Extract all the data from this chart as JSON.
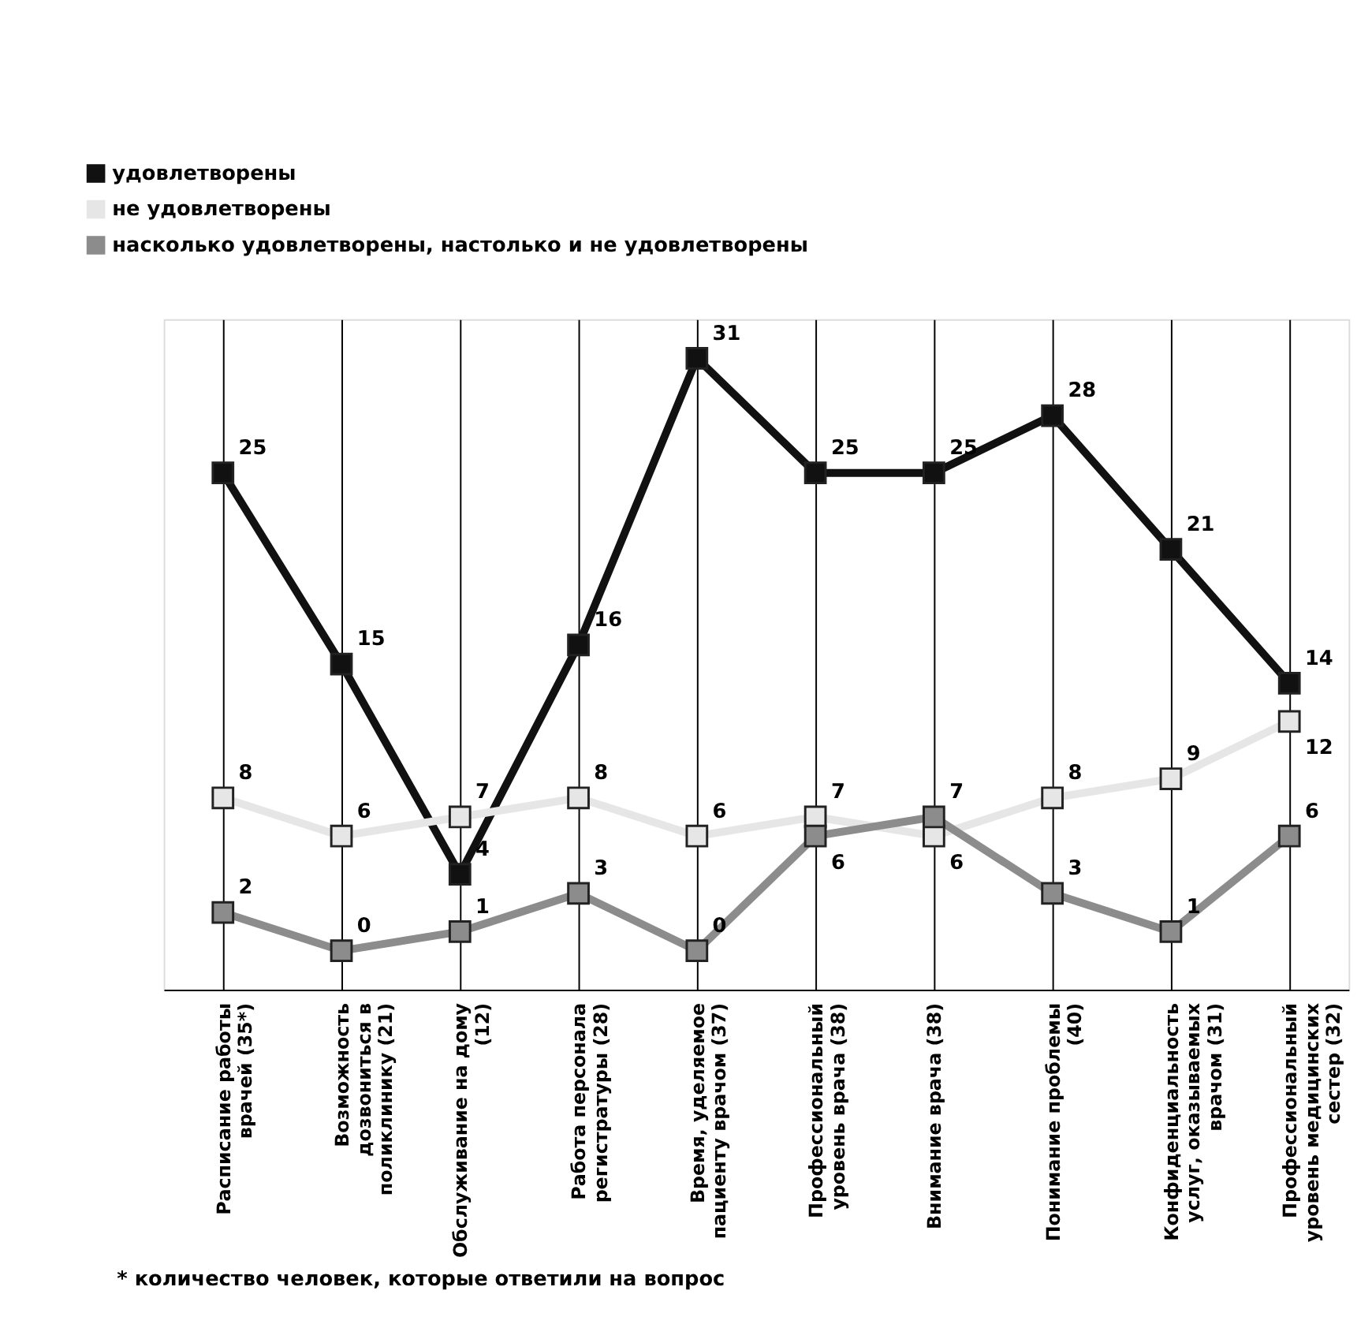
{
  "chart_data": {
    "type": "line",
    "categories": [
      "Расписание работы врачей (35*)",
      "Возможность дозвониться в поликлинику (21)",
      "Обслуживание на дому (12)",
      "Работа персонала регистратуры (28)",
      "Время, уделяемое пациенту врачом (37)",
      "Профессиональный уровень врача (38)",
      "Внимание врача (38)",
      "Понимание проблемы (40)",
      "Конфиденциальность услуг, оказываемых врачом (31)",
      "Профессиональный уровень медицинских сестер (32)"
    ],
    "series": [
      {
        "name": "удовлетворены",
        "color": "#111111",
        "values": [
          25,
          15,
          4,
          16,
          31,
          25,
          25,
          28,
          21,
          14
        ]
      },
      {
        "name": "не удовлетворены",
        "color": "#e6e6e6",
        "values": [
          8,
          6,
          7,
          8,
          6,
          7,
          6,
          8,
          9,
          12
        ]
      },
      {
        "name": "насколько удовлетворены, настолько и не удовлетворены",
        "color": "#8c8c8c",
        "values": [
          2,
          0,
          1,
          3,
          0,
          6,
          7,
          3,
          1,
          6
        ]
      }
    ],
    "data_labels": true,
    "marker": "square",
    "line_style": "solid",
    "grid": "x",
    "legend": "top left",
    "annotations": [
      "* количество человек, которые ответили на вопрос"
    ]
  }
}
